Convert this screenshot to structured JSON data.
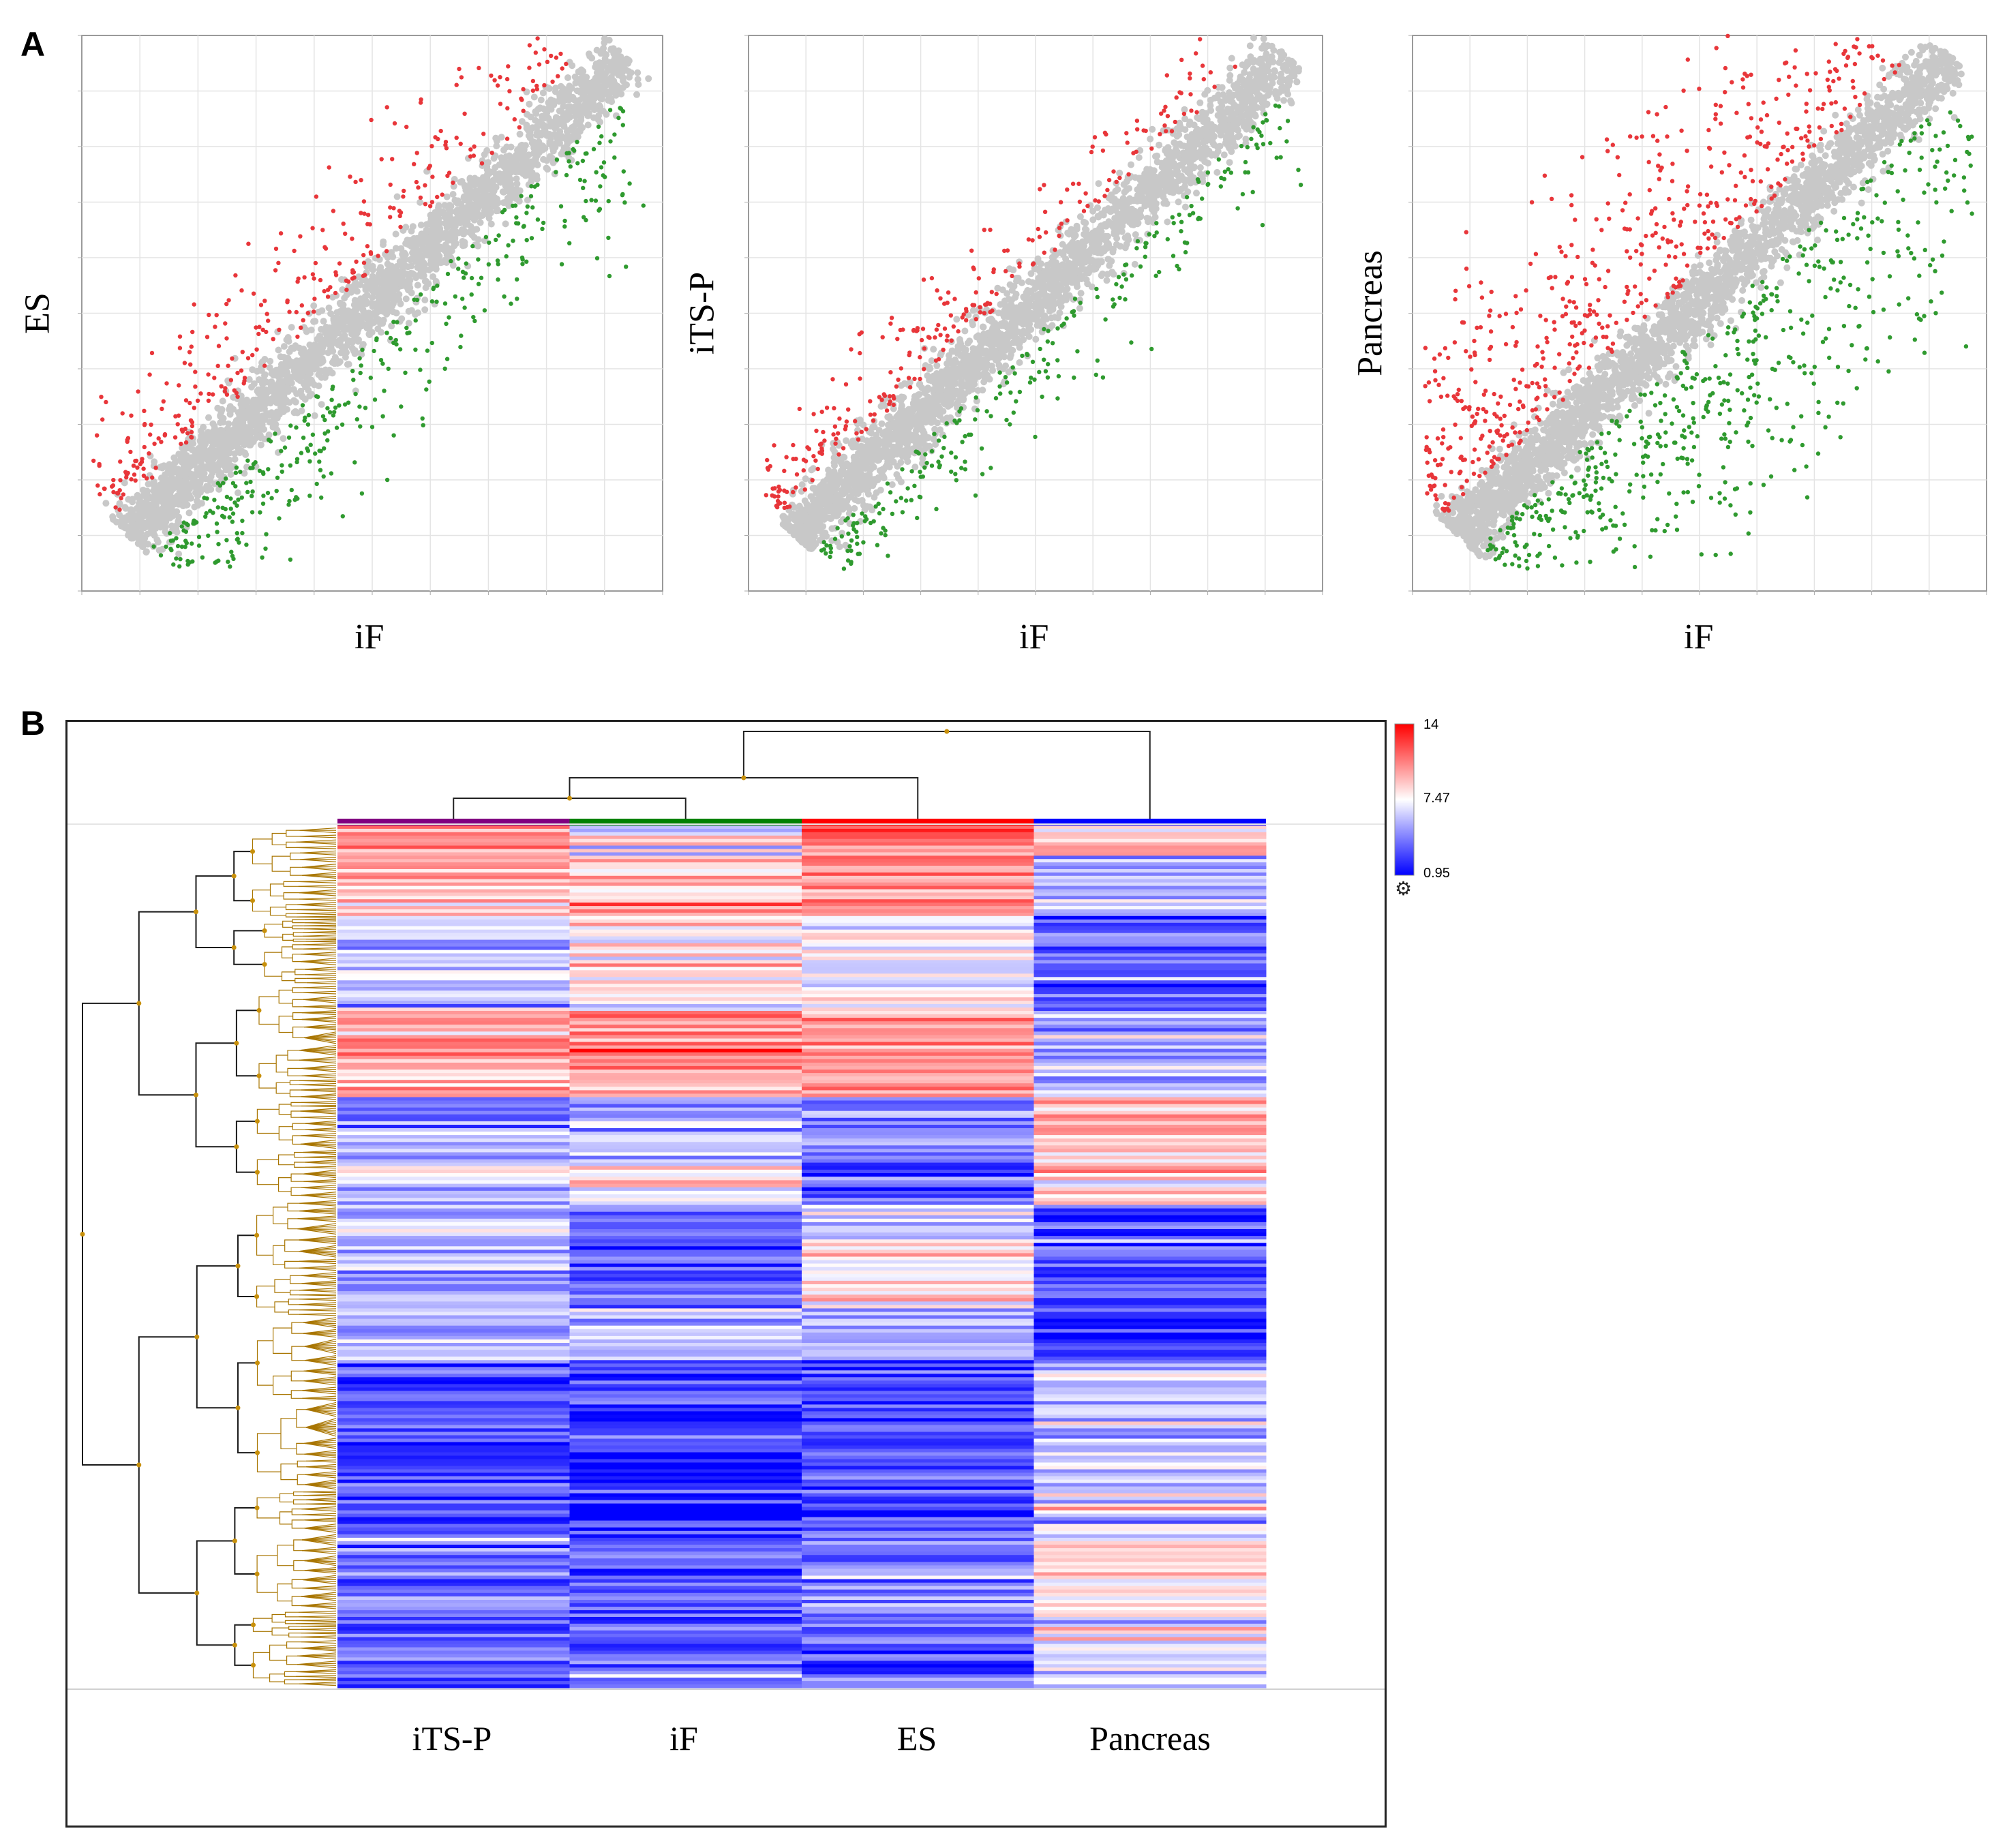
{
  "panels": {
    "a_label": "A",
    "b_label": "B"
  },
  "chart_data": [
    {
      "type": "scatter",
      "id": "es-vs-if",
      "xlabel": "iF",
      "ylabel": "ES",
      "grid": true,
      "series": [
        {
          "color": "#e8363a",
          "role": "up"
        },
        {
          "color": "#2f9a2f",
          "role": "down"
        },
        {
          "color": "#c8c8c8",
          "role": "unchanged"
        }
      ]
    },
    {
      "type": "scatter",
      "id": "itsp-vs-if",
      "xlabel": "iF",
      "ylabel": "iTS-P",
      "grid": true,
      "series": [
        {
          "color": "#e8363a",
          "role": "up"
        },
        {
          "color": "#2f9a2f",
          "role": "down"
        },
        {
          "color": "#c8c8c8",
          "role": "unchanged"
        }
      ]
    },
    {
      "type": "scatter",
      "id": "pancreas-vs-if",
      "xlabel": "iF",
      "ylabel": "Pancreas",
      "grid": true,
      "series": [
        {
          "color": "#e8363a",
          "role": "up"
        },
        {
          "color": "#2f9a2f",
          "role": "down"
        },
        {
          "color": "#c8c8c8",
          "role": "unchanged"
        }
      ]
    },
    {
      "type": "heatmap",
      "id": "clustered-heatmap",
      "columns": [
        "iTS-P",
        "iF",
        "ES",
        "Pancreas"
      ],
      "column_colors": [
        "#800080",
        "#008000",
        "#ff0000",
        "#0000ff"
      ],
      "colorscale": {
        "min": 0.95,
        "mid": 7.47,
        "max": 14,
        "low_color": "#0000ff",
        "mid_color": "#ffffff",
        "high_color": "#ff0000"
      },
      "legend_labels": [
        "14",
        "7.47",
        "0.95"
      ],
      "column_dendrogram": "((iTS-P,iF),ES),Pancreas"
    }
  ]
}
